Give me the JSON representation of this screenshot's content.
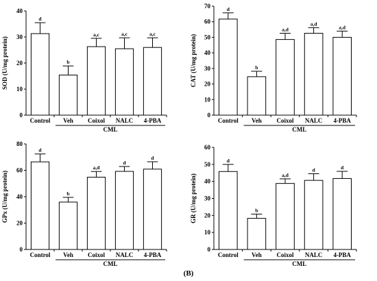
{
  "panel_label": "(B)",
  "chart_data": [
    {
      "type": "bar",
      "ylabel": "SOD (U/mg protein)",
      "categories": [
        "Control",
        "Veh",
        "Coixol",
        "NALC",
        "4-PBA"
      ],
      "group_label": "CML",
      "values": [
        31.3,
        15.4,
        26.3,
        25.5,
        26.0
      ],
      "errors": [
        4.2,
        3.5,
        3.2,
        4.2,
        3.7
      ],
      "significance": [
        "d",
        "b",
        "a,c",
        "a,c",
        "a,c"
      ],
      "ylim": [
        0,
        40
      ],
      "yticks": [
        0,
        10,
        20,
        30,
        40
      ]
    },
    {
      "type": "bar",
      "ylabel": "CAT (U/mg protein)",
      "categories": [
        "Control",
        "Veh",
        "Coixol",
        "NALC",
        "4-PBA"
      ],
      "group_label": "CML",
      "values": [
        61.7,
        24.7,
        48.6,
        52.6,
        50.0
      ],
      "errors": [
        4.0,
        3.5,
        4.0,
        3.6,
        4.0
      ],
      "significance": [
        "d",
        "b",
        "a,d",
        "a,d",
        "a,d"
      ],
      "ylim": [
        0,
        70
      ],
      "yticks": [
        0,
        10,
        20,
        30,
        40,
        50,
        60,
        70
      ]
    },
    {
      "type": "bar",
      "ylabel": "GPx (U/mg protein)",
      "categories": [
        "Control",
        "Veh",
        "Coixol",
        "NALC",
        "4-PBA"
      ],
      "group_label": "CML",
      "values": [
        66.4,
        35.9,
        54.8,
        59.2,
        60.9
      ],
      "errors": [
        6.0,
        3.6,
        4.3,
        3.7,
        5.6
      ],
      "significance": [
        "d",
        "b",
        "a,d",
        "d",
        "d"
      ],
      "ylim": [
        0,
        80
      ],
      "yticks": [
        0,
        20,
        40,
        60,
        80
      ]
    },
    {
      "type": "bar",
      "ylabel": "GR (U/mg protein)",
      "categories": [
        "Control",
        "Veh",
        "Coixol",
        "NALC",
        "4-PBA"
      ],
      "group_label": "CML",
      "values": [
        45.8,
        18.3,
        38.8,
        40.6,
        41.7
      ],
      "errors": [
        4.2,
        2.5,
        2.7,
        3.9,
        4.2
      ],
      "significance": [
        "d",
        "b",
        "a,d",
        "d",
        "d"
      ],
      "ylim": [
        0,
        60
      ],
      "yticks": [
        0,
        10,
        20,
        30,
        40,
        50,
        60
      ]
    }
  ]
}
